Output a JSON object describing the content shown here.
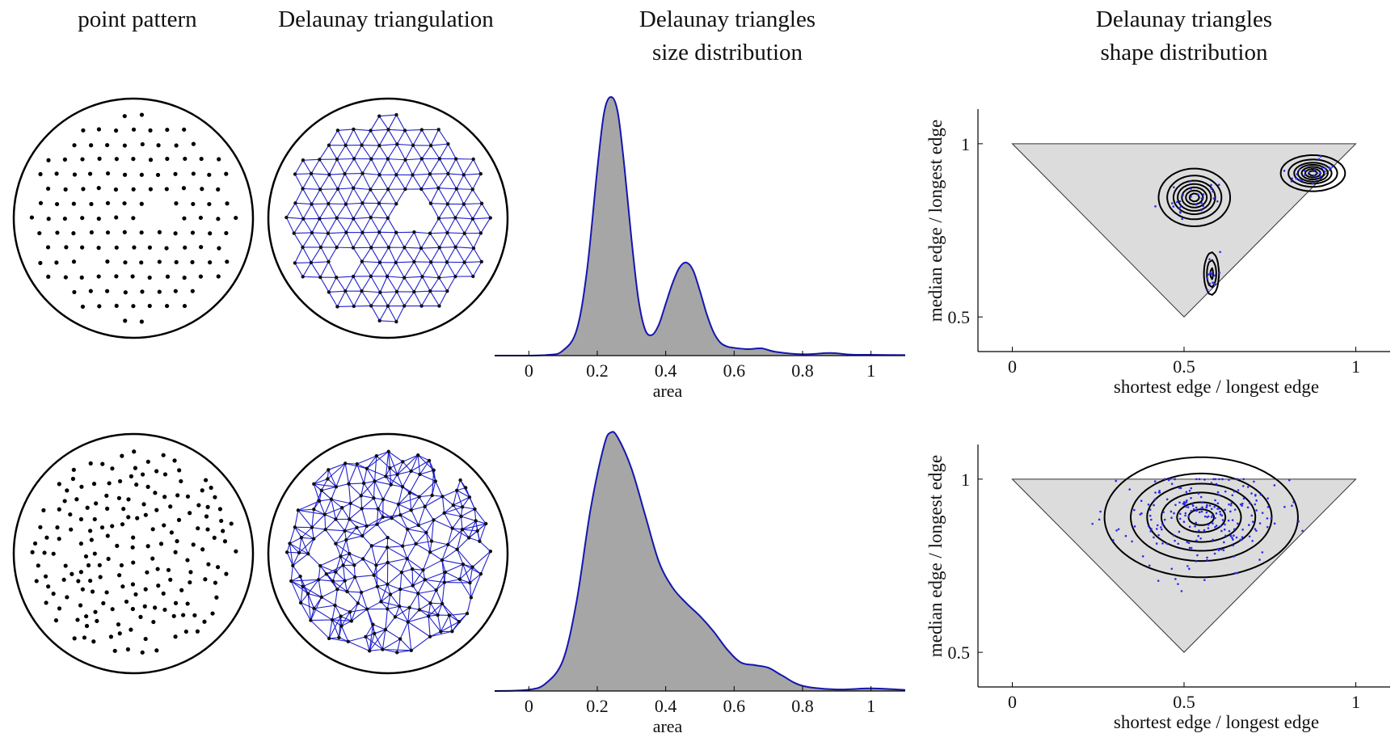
{
  "column_titles": {
    "pattern": "point pattern",
    "triangulation": "Delaunay triangulation",
    "size_line1": "Delaunay triangles",
    "size_line2": "size distribution",
    "shape_line1": "Delaunay triangles",
    "shape_line2": "shape distribution"
  },
  "colors": {
    "points": "#000000",
    "mesh": "#2020d0",
    "curve": "#1515b0",
    "fill": "#a6a6a6",
    "region": "#dcdcdc",
    "scatter": "#2a2af0"
  },
  "chart_data": [
    {
      "type": "area",
      "name": "size-distribution-top",
      "xlabel": "area",
      "xlim": [
        -0.1,
        1.1
      ],
      "xticks": [
        0,
        0.2,
        0.4,
        0.6,
        0.8,
        1
      ],
      "xtick_labels": [
        "0",
        "0.2",
        "0.4",
        "0.6",
        "0.8",
        "1"
      ],
      "x": [
        -0.1,
        0.05,
        0.1,
        0.14,
        0.17,
        0.2,
        0.22,
        0.24,
        0.26,
        0.28,
        0.3,
        0.32,
        0.34,
        0.36,
        0.38,
        0.4,
        0.42,
        0.44,
        0.46,
        0.48,
        0.5,
        0.52,
        0.54,
        0.56,
        0.58,
        0.6,
        0.64,
        0.68,
        0.72,
        0.8,
        0.88,
        0.94,
        1.0,
        1.1
      ],
      "y": [
        0,
        0.002,
        0.02,
        0.1,
        0.33,
        0.72,
        0.94,
        1.0,
        0.94,
        0.72,
        0.45,
        0.22,
        0.1,
        0.08,
        0.12,
        0.2,
        0.28,
        0.34,
        0.36,
        0.33,
        0.25,
        0.16,
        0.09,
        0.05,
        0.035,
        0.03,
        0.025,
        0.028,
        0.015,
        0.005,
        0.01,
        0.004,
        0.003,
        0.002
      ]
    },
    {
      "type": "area",
      "name": "size-distribution-bottom",
      "xlabel": "area",
      "xlim": [
        -0.1,
        1.1
      ],
      "xticks": [
        0,
        0.2,
        0.4,
        0.6,
        0.8,
        1
      ],
      "xtick_labels": [
        "0",
        "0.2",
        "0.4",
        "0.6",
        "0.8",
        "1"
      ],
      "x": [
        -0.1,
        0.0,
        0.05,
        0.1,
        0.14,
        0.18,
        0.22,
        0.24,
        0.26,
        0.3,
        0.34,
        0.38,
        0.42,
        0.46,
        0.5,
        0.54,
        0.58,
        0.62,
        0.66,
        0.7,
        0.74,
        0.8,
        0.9,
        1.0,
        1.1
      ],
      "y": [
        0,
        0.005,
        0.03,
        0.12,
        0.35,
        0.7,
        0.95,
        1.0,
        0.98,
        0.86,
        0.68,
        0.5,
        0.4,
        0.34,
        0.29,
        0.23,
        0.16,
        0.11,
        0.1,
        0.09,
        0.06,
        0.02,
        0.006,
        0.01,
        0.004
      ]
    },
    {
      "type": "scatter",
      "name": "shape-distribution-top",
      "xlabel": "shortest edge / longest edge",
      "ylabel": "median edge / longest edge",
      "xlim": [
        -0.1,
        1.1
      ],
      "ylim": [
        0.4,
        1.1
      ],
      "xticks": [
        0,
        0.5,
        1
      ],
      "xtick_labels": [
        "0",
        "0.5",
        "1"
      ],
      "yticks": [
        0.5,
        1
      ],
      "ytick_labels": [
        "0.5",
        "1"
      ],
      "feasible_region": [
        [
          0,
          1
        ],
        [
          1,
          1
        ],
        [
          0.5,
          0.5
        ]
      ],
      "clusters": [
        {
          "cx": 0.53,
          "cy": 0.845,
          "sx": 0.05,
          "sy": 0.04,
          "n": 28
        },
        {
          "cx": 0.58,
          "cy": 0.625,
          "sx": 0.012,
          "sy": 0.035,
          "n": 14
        },
        {
          "cx": 0.875,
          "cy": 0.915,
          "sx": 0.045,
          "sy": 0.025,
          "n": 26
        }
      ],
      "contour_levels": [
        0.12,
        0.3,
        0.5,
        0.65,
        0.8,
        0.92,
        1.0
      ]
    },
    {
      "type": "scatter",
      "name": "shape-distribution-bottom",
      "xlabel": "shortest edge / longest edge",
      "ylabel": "median edge / longest edge",
      "xlim": [
        -0.1,
        1.1
      ],
      "ylim": [
        0.4,
        1.1
      ],
      "xticks": [
        0,
        0.5,
        1
      ],
      "xtick_labels": [
        "0",
        "0.5",
        "1"
      ],
      "yticks": [
        0.5,
        1
      ],
      "ytick_labels": [
        "0.5",
        "1"
      ],
      "feasible_region": [
        [
          0,
          1
        ],
        [
          1,
          1
        ],
        [
          0.5,
          0.5
        ]
      ],
      "clusters": [
        {
          "cx": 0.55,
          "cy": 0.89,
          "sx": 0.13,
          "sy": 0.08,
          "n": 240
        }
      ],
      "contour_levels": [
        0.1,
        0.3,
        0.5,
        0.7,
        0.9,
        1.0
      ]
    }
  ]
}
